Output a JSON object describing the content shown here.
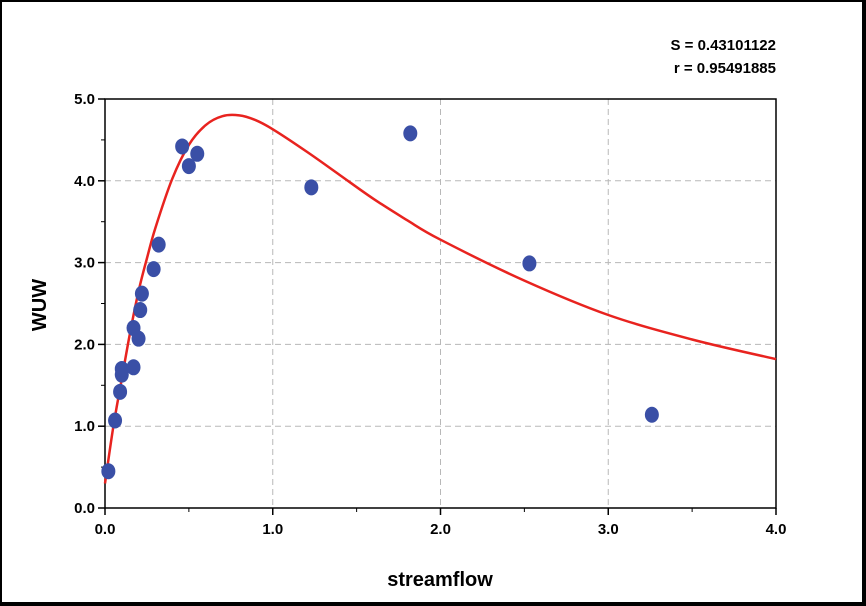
{
  "chart_data": {
    "type": "scatter",
    "title": "",
    "xlabel": "streamflow",
    "ylabel": "WUW",
    "xlim": [
      0,
      4.0
    ],
    "ylim": [
      0,
      5.0
    ],
    "x_ticks": [
      "0.0",
      "1.0",
      "2.0",
      "3.0",
      "4.0"
    ],
    "y_ticks": [
      "0.0",
      "1.0",
      "2.0",
      "3.0",
      "4.0",
      "5.0"
    ],
    "grid": true,
    "annotations": [
      "S = 0.43101122",
      "r = 0.95491885"
    ],
    "point_color": "#3a4fa6",
    "curve_color": "#e8231f",
    "series": [
      {
        "type": "scatter",
        "x": [
          0.02,
          0.06,
          0.09,
          0.1,
          0.1,
          0.17,
          0.17,
          0.2,
          0.21,
          0.22,
          0.29,
          0.32,
          0.46,
          0.5,
          0.55,
          1.23,
          1.82,
          2.53,
          3.26
        ],
        "y": [
          0.45,
          1.07,
          1.42,
          1.63,
          1.7,
          1.72,
          2.2,
          2.07,
          2.42,
          2.62,
          2.92,
          3.22,
          4.42,
          4.18,
          4.33,
          3.92,
          4.58,
          2.99,
          1.14
        ]
      },
      {
        "type": "line",
        "x": [
          0.0,
          0.05,
          0.1,
          0.15,
          0.2,
          0.25,
          0.3,
          0.4,
          0.5,
          0.6,
          0.7,
          0.8,
          0.9,
          1.0,
          1.2,
          1.4,
          1.6,
          1.8,
          2.0,
          2.5,
          3.0,
          3.5,
          4.0
        ],
        "y": [
          0.3,
          1.0,
          1.58,
          2.15,
          2.65,
          3.05,
          3.42,
          4.02,
          4.44,
          4.68,
          4.79,
          4.8,
          4.74,
          4.63,
          4.36,
          4.07,
          3.78,
          3.52,
          3.28,
          2.78,
          2.36,
          2.06,
          1.82
        ]
      }
    ]
  }
}
